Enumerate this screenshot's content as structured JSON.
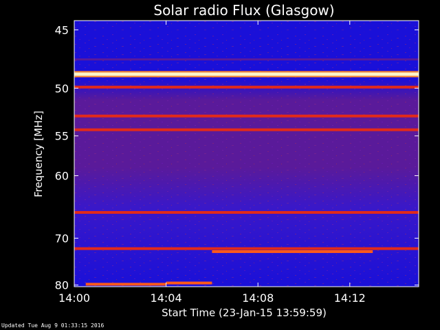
{
  "chart_data": {
    "type": "heatmap",
    "title": "Solar radio Flux (Glasgow)",
    "xlabel": "Start Time (23-Jan-15 13:59:59)",
    "ylabel": "Frequency [MHz]",
    "xlim": [
      "14:00",
      "14:15"
    ],
    "ylim": [
      44.3,
      80.4
    ],
    "x_ticks": [
      "14:00",
      "14:04",
      "14:08",
      "14:12"
    ],
    "y_ticks": [
      45,
      50,
      55,
      60,
      70,
      80
    ],
    "y_scale": "reciprocal",
    "colors": {
      "background": "#000000",
      "low": "#1a10d8",
      "mid": "#5a1a9a",
      "high": "#e22a1a",
      "peak": "#fff6c8"
    },
    "bands": [
      {
        "freq_mhz": 45.1,
        "level": "low"
      },
      {
        "freq_mhz": 47.4,
        "level": "mid"
      },
      {
        "freq_mhz": 48.7,
        "level": "peak"
      },
      {
        "freq_mhz": 49.9,
        "level": "high"
      },
      {
        "freq_mhz": 52.8,
        "level": "high"
      },
      {
        "freq_mhz": 54.3,
        "level": "high"
      },
      {
        "freq_mhz": 65.5,
        "level": "high"
      },
      {
        "freq_mhz": 72.0,
        "level": "high"
      }
    ],
    "bursts": [
      {
        "start": "14:00:30",
        "end": "14:04:00",
        "freq_mhz": 79.8
      },
      {
        "start": "14:04:00",
        "end": "14:06:00",
        "freq_mhz": 79.5
      },
      {
        "start": "14:06:00",
        "end": "14:13:00",
        "freq_mhz": 72.6
      }
    ]
  },
  "footer": {
    "updated": "Updated Tue Aug  9 01:33:15 2016"
  }
}
